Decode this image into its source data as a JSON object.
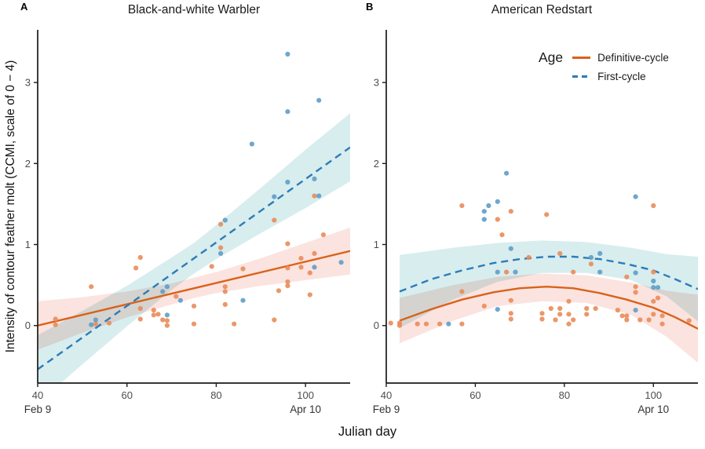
{
  "panel_labels": [
    "A",
    "B"
  ],
  "legend": {
    "title": "Age",
    "items": [
      {
        "label": "Definitive-cycle",
        "style": "solid",
        "color": "#d9621a"
      },
      {
        "label": "First-cycle",
        "style": "dashed",
        "color": "#2b7cba"
      }
    ]
  },
  "colors": {
    "axis": "#1a1a1a",
    "tick_text": "#4d4d4d",
    "date_text": "#333333",
    "title_text": "#1a1a1a",
    "definitive_line": "#d9621a",
    "first_line": "#2b7cba",
    "definitive_point": "#e98c5a",
    "first_point": "#5f9dc8",
    "definitive_band": "#fbe3df",
    "first_band": "#d8edee"
  },
  "chart_data": [
    {
      "type": "scatter",
      "panel": "A",
      "title": "Black-and-white Warbler",
      "xlabel": "Julian day",
      "ylabel": "Intensity of contour feather molt (CCMI, scale of 0 − 4)",
      "xlim": [
        40,
        110
      ],
      "ylim": [
        -0.71,
        3.65
      ],
      "grid": false,
      "x_ticks": [
        {
          "value": 40,
          "label": "40",
          "sub": "Feb 9"
        },
        {
          "value": 60,
          "label": "60",
          "sub": ""
        },
        {
          "value": 80,
          "label": "80",
          "sub": ""
        },
        {
          "value": 100,
          "label": "100",
          "sub": "Apr 10"
        }
      ],
      "y_ticks": [
        {
          "value": 0,
          "label": "0"
        },
        {
          "value": 1,
          "label": "1"
        },
        {
          "value": 2,
          "label": "2"
        },
        {
          "value": 3,
          "label": "3"
        }
      ],
      "series": [
        {
          "id": "definitive-cycle",
          "name": "Definitive-cycle",
          "dashed": false,
          "line_color": "#d9621a",
          "point_color": "#e98c5a",
          "band_color": "#fbe3df",
          "points": [
            [
              102,
              1.6
            ],
            [
              93,
              1.3
            ],
            [
              81,
              1.25
            ],
            [
              104,
              1.12
            ],
            [
              96,
              1.01
            ],
            [
              81,
              0.96
            ],
            [
              102,
              0.89
            ],
            [
              63,
              0.84
            ],
            [
              99,
              0.83
            ],
            [
              79,
              0.73
            ],
            [
              99,
              0.72
            ],
            [
              62,
              0.71
            ],
            [
              96,
              0.71
            ],
            [
              86,
              0.7
            ],
            [
              101,
              0.65
            ],
            [
              96,
              0.54
            ],
            [
              96,
              0.49
            ],
            [
              52,
              0.48
            ],
            [
              82,
              0.48
            ],
            [
              94,
              0.43
            ],
            [
              82,
              0.42
            ],
            [
              101,
              0.38
            ],
            [
              71,
              0.36
            ],
            [
              82,
              0.26
            ],
            [
              75,
              0.24
            ],
            [
              63,
              0.21
            ],
            [
              66,
              0.19
            ],
            [
              67,
              0.14
            ],
            [
              66,
              0.13
            ],
            [
              44,
              0.08
            ],
            [
              63,
              0.08
            ],
            [
              93,
              0.07
            ],
            [
              68,
              0.07
            ],
            [
              69,
              0.06
            ],
            [
              56,
              0.03
            ],
            [
              53,
              0.02
            ],
            [
              75,
              0.02
            ],
            [
              84,
              0.02
            ],
            [
              44,
              0.01
            ],
            [
              69,
              0
            ]
          ],
          "trend": {
            "x": [
              40,
              110
            ],
            "y": [
              0.0,
              0.92
            ]
          },
          "band": {
            "x": [
              40,
              50,
              60,
              70,
              75,
              80,
              90,
              100,
              110
            ],
            "top": [
              0.3,
              0.35,
              0.42,
              0.52,
              0.59,
              0.66,
              0.83,
              1.02,
              1.21
            ],
            "bottom": [
              -0.3,
              -0.09,
              0.1,
              0.26,
              0.34,
              0.4,
              0.49,
              0.56,
              0.63
            ]
          }
        },
        {
          "id": "first-cycle",
          "name": "First-cycle",
          "dashed": true,
          "line_color": "#2b7cba",
          "point_color": "#5f9dc8",
          "band_color": "#d8edee",
          "points": [
            [
              96,
              3.35
            ],
            [
              103,
              2.78
            ],
            [
              96,
              2.64
            ],
            [
              88,
              2.24
            ],
            [
              102,
              1.81
            ],
            [
              96,
              1.77
            ],
            [
              103,
              1.6
            ],
            [
              93,
              1.59
            ],
            [
              82,
              1.3
            ],
            [
              81,
              0.89
            ],
            [
              108,
              0.78
            ],
            [
              102,
              0.72
            ],
            [
              69,
              0.48
            ],
            [
              68,
              0.42
            ],
            [
              86,
              0.31
            ],
            [
              72,
              0.31
            ],
            [
              69,
              0.13
            ],
            [
              53,
              0.07
            ],
            [
              52,
              0.01
            ]
          ],
          "trend": {
            "x": [
              40,
              110
            ],
            "y": [
              -0.54,
              2.2
            ]
          },
          "band": {
            "x": [
              40,
              50,
              60,
              70,
              75,
              80,
              90,
              100,
              110
            ],
            "top": [
              -0.12,
              0.18,
              0.49,
              0.84,
              1.02,
              1.24,
              1.7,
              2.17,
              2.62
            ],
            "bottom": [
              -0.96,
              -0.48,
              -0.01,
              0.44,
              0.64,
              0.82,
              1.14,
              1.45,
              1.78
            ]
          }
        }
      ]
    },
    {
      "type": "scatter",
      "panel": "B",
      "title": "American Redstart",
      "xlabel": "Julian day",
      "ylabel": "Intensity of contour feather molt (CCMI, scale of 0 − 4)",
      "xlim": [
        40,
        110
      ],
      "ylim": [
        -0.71,
        3.65
      ],
      "grid": false,
      "x_ticks": [
        {
          "value": 40,
          "label": "40",
          "sub": "Feb 9"
        },
        {
          "value": 60,
          "label": "60",
          "sub": ""
        },
        {
          "value": 80,
          "label": "80",
          "sub": ""
        },
        {
          "value": 100,
          "label": "100",
          "sub": "Apr 10"
        }
      ],
      "y_ticks": [
        {
          "value": 0,
          "label": "0"
        },
        {
          "value": 1,
          "label": "1"
        },
        {
          "value": 2,
          "label": "2"
        },
        {
          "value": 3,
          "label": "3"
        }
      ],
      "series": [
        {
          "id": "definitive-cycle",
          "name": "Definitive-cycle",
          "dashed": false,
          "line_color": "#d9621a",
          "point_color": "#e98c5a",
          "band_color": "#fbe3df",
          "points": [
            [
              57,
              1.48
            ],
            [
              100,
              1.48
            ],
            [
              68,
              1.41
            ],
            [
              76,
              1.37
            ],
            [
              65,
              1.31
            ],
            [
              66,
              1.12
            ],
            [
              79,
              0.89
            ],
            [
              72,
              0.84
            ],
            [
              86,
              0.76
            ],
            [
              82,
              0.66
            ],
            [
              67,
              0.66
            ],
            [
              100,
              0.66
            ],
            [
              94,
              0.6
            ],
            [
              96,
              0.48
            ],
            [
              57,
              0.42
            ],
            [
              96,
              0.41
            ],
            [
              101,
              0.34
            ],
            [
              68,
              0.31
            ],
            [
              100,
              0.3
            ],
            [
              81,
              0.3
            ],
            [
              62,
              0.24
            ],
            [
              77,
              0.21
            ],
            [
              79,
              0.21
            ],
            [
              85,
              0.21
            ],
            [
              87,
              0.21
            ],
            [
              92,
              0.19
            ],
            [
              68,
              0.15
            ],
            [
              75,
              0.15
            ],
            [
              79,
              0.14
            ],
            [
              81,
              0.14
            ],
            [
              85,
              0.14
            ],
            [
              100,
              0.14
            ],
            [
              93,
              0.12
            ],
            [
              94,
              0.12
            ],
            [
              102,
              0.12
            ],
            [
              75,
              0.08
            ],
            [
              68,
              0.08
            ],
            [
              78,
              0.07
            ],
            [
              82,
              0.07
            ],
            [
              94,
              0.07
            ],
            [
              97,
              0.07
            ],
            [
              99,
              0.07
            ],
            [
              108,
              0.06
            ],
            [
              41,
              0.03
            ],
            [
              43,
              0.03
            ],
            [
              47,
              0.02
            ],
            [
              49,
              0.02
            ],
            [
              52,
              0.02
            ],
            [
              57,
              0.02
            ],
            [
              81,
              0.02
            ],
            [
              102,
              0.02
            ],
            [
              43,
              0
            ]
          ],
          "trend": {
            "x": [
              43,
              50,
              57,
              64,
              70,
              76,
              82,
              88,
              94,
              100,
              105,
              110
            ],
            "y": [
              0.06,
              0.2,
              0.32,
              0.41,
              0.46,
              0.48,
              0.46,
              0.4,
              0.32,
              0.22,
              0.1,
              -0.04
            ]
          },
          "band": {
            "x": [
              43,
              55,
              65,
              75,
              85,
              95,
              103,
              110
            ],
            "top": [
              0.34,
              0.5,
              0.6,
              0.64,
              0.62,
              0.53,
              0.43,
              0.38
            ],
            "bottom": [
              -0.22,
              0.06,
              0.24,
              0.3,
              0.28,
              0.13,
              -0.14,
              -0.46
            ]
          }
        },
        {
          "id": "first-cycle",
          "name": "First-cycle",
          "dashed": true,
          "line_color": "#2b7cba",
          "point_color": "#5f9dc8",
          "band_color": "#d8edee",
          "points": [
            [
              67,
              1.88
            ],
            [
              96,
              1.59
            ],
            [
              65,
              1.53
            ],
            [
              63,
              1.48
            ],
            [
              62,
              1.41
            ],
            [
              62,
              1.31
            ],
            [
              68,
              0.95
            ],
            [
              88,
              0.89
            ],
            [
              86,
              0.84
            ],
            [
              88,
              0.66
            ],
            [
              69,
              0.66
            ],
            [
              65,
              0.66
            ],
            [
              96,
              0.65
            ],
            [
              100,
              0.55
            ],
            [
              100,
              0.47
            ],
            [
              101,
              0.47
            ],
            [
              65,
              0.2
            ],
            [
              96,
              0.19
            ],
            [
              54,
              0.02
            ]
          ],
          "trend": {
            "x": [
              43,
              50,
              57,
              64,
              70,
              76,
              82,
              88,
              94,
              100,
              105,
              110
            ],
            "y": [
              0.42,
              0.57,
              0.68,
              0.77,
              0.82,
              0.85,
              0.85,
              0.82,
              0.76,
              0.68,
              0.57,
              0.45
            ]
          },
          "band": {
            "x": [
              43,
              55,
              65,
              75,
              85,
              95,
              103,
              110
            ],
            "top": [
              0.87,
              0.96,
              1.02,
              1.05,
              1.03,
              0.96,
              0.88,
              0.85
            ],
            "bottom": [
              -0.03,
              0.32,
              0.54,
              0.65,
              0.65,
              0.56,
              0.36,
              0.05
            ]
          }
        }
      ]
    }
  ]
}
